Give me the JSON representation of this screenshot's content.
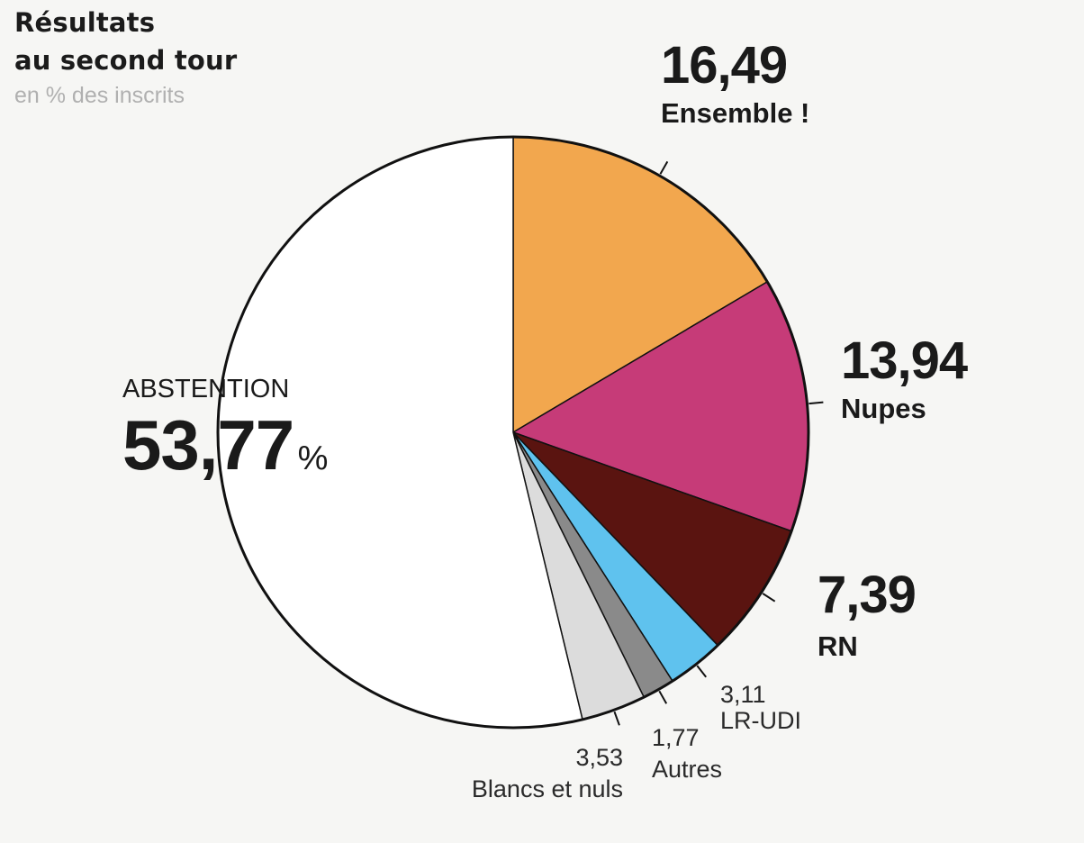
{
  "header": {
    "title_line1": "Résultats",
    "title_line2": "au second tour",
    "subtitle": "en % des inscrits"
  },
  "chart_data": {
    "type": "pie",
    "title": "Résultats au second tour",
    "subtitle": "en % des inscrits",
    "slices": [
      {
        "label": "Ensemble !",
        "value": 16.49,
        "display": "16,49",
        "color": "#f2a74e"
      },
      {
        "label": "Nupes",
        "value": 13.94,
        "display": "13,94",
        "color": "#c63b78"
      },
      {
        "label": "RN",
        "value": 7.39,
        "display": "7,39",
        "color": "#5a1410"
      },
      {
        "label": "LR-UDI",
        "value": 3.11,
        "display": "3,11",
        "color": "#5fc2ee"
      },
      {
        "label": "Autres",
        "value": 1.77,
        "display": "1,77",
        "color": "#8a8a8a"
      },
      {
        "label": "Blancs et nuls",
        "value": 3.53,
        "display": "3,53",
        "color": "#dcdcdc"
      },
      {
        "label": "ABSTENTION",
        "value": 53.77,
        "display": "53,77",
        "unit": "%",
        "color": "#ffffff"
      }
    ]
  }
}
